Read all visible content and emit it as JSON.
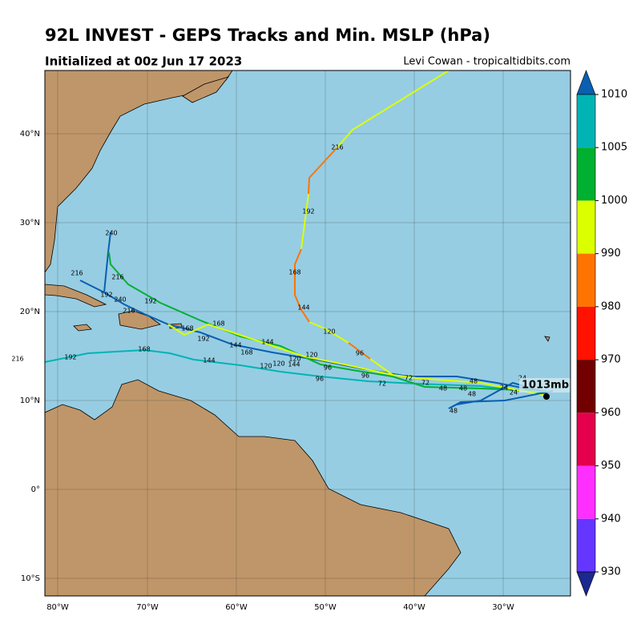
{
  "header": {
    "title": "92L INVEST - GEPS Tracks and Min. MSLP (hPa)",
    "subtitle": "Initialized at 00z Jun 17 2023",
    "credit": "Levi Cowan - tropicaltidbits.com"
  },
  "axes": {
    "lon_labels": [
      "80°W",
      "70°W",
      "60°W",
      "50°W",
      "40°W",
      "30°W"
    ],
    "lat_labels": [
      "40°N",
      "30°N",
      "20°N",
      "10°N",
      "0°",
      "10°S"
    ]
  },
  "colorbar": {
    "levels": [
      1010,
      1005,
      1000,
      990,
      980,
      970,
      960,
      950,
      940,
      930
    ],
    "colors": [
      "#0a5fb0",
      "#00b4b4",
      "#00b030",
      "#dcff00",
      "#ff7400",
      "#ff1200",
      "#720000",
      "#e4004c",
      "#ff30ff",
      "#6436ff",
      "#1a2890"
    ]
  },
  "current_label": "1013mb",
  "track_labels": [
    "216",
    "192",
    "168",
    "144",
    "120",
    "96",
    "96",
    "96",
    "72",
    "72",
    "72",
    "48",
    "48",
    "48",
    "48",
    "48",
    "24",
    "24",
    "24",
    "120",
    "120",
    "120",
    "120",
    "144",
    "144",
    "144",
    "144",
    "168",
    "168",
    "168",
    "168",
    "192",
    "192",
    "192",
    "192",
    "216",
    "216",
    "216",
    "216",
    "240",
    "240",
    "96"
  ]
}
